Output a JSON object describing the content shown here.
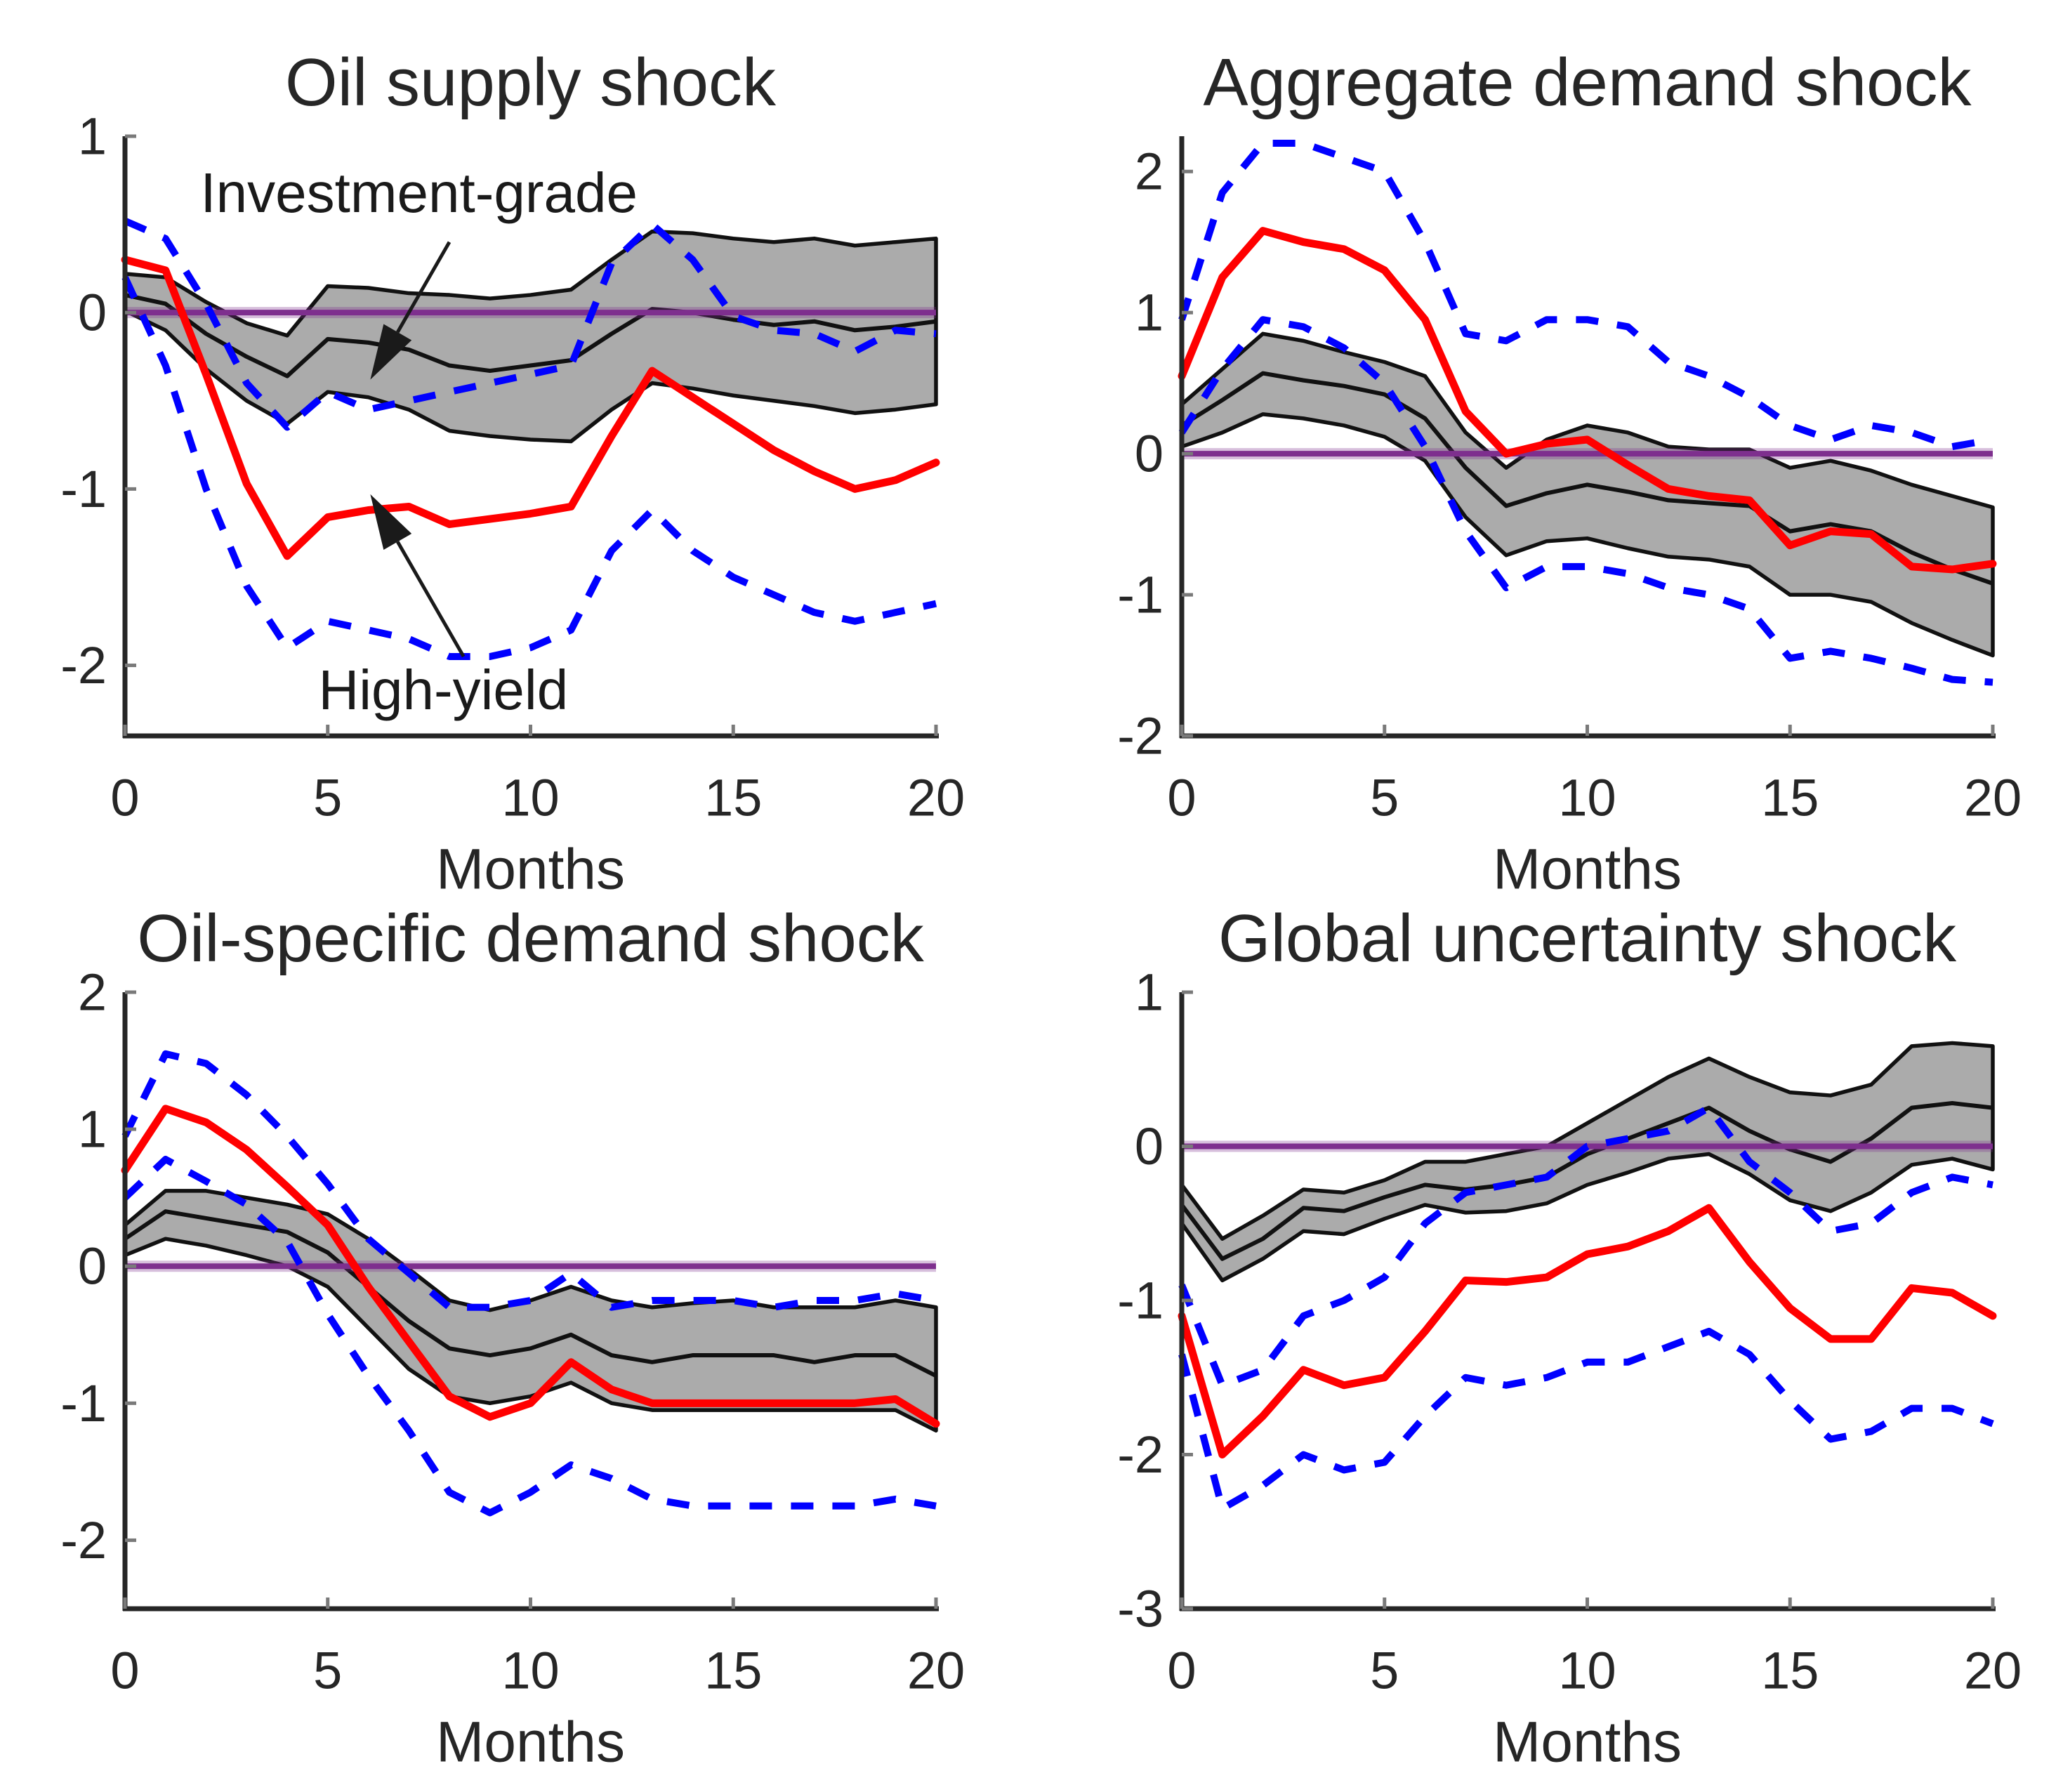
{
  "figure": {
    "background": "#ffffff",
    "palette": {
      "high_yield_red": "#ff0000",
      "ci_blue": "#0000ff",
      "zero_purple": "#7e2f8e",
      "band_gray": "#ababab",
      "band_edge": "#111111",
      "axis_color": "#262626"
    }
  },
  "chart_data": [
    {
      "type": "line",
      "title": "Oil supply shock",
      "xlabel": "Months",
      "x": [
        0,
        1,
        2,
        3,
        4,
        5,
        6,
        7,
        8,
        9,
        10,
        11,
        12,
        13,
        14,
        15,
        16,
        17,
        18,
        19,
        20
      ],
      "xticks": [
        0,
        5,
        10,
        15,
        20
      ],
      "yticks": [
        1,
        0,
        -1,
        -2
      ],
      "xlim": [
        0,
        20
      ],
      "ylim": [
        -2.4,
        1.0
      ],
      "grid": false,
      "legend": "annotated-arrows",
      "band": {
        "name": "investment-grade 68% CI",
        "fill": "#ababab",
        "upper": [
          0.22,
          0.2,
          0.06,
          -0.06,
          -0.13,
          0.15,
          0.14,
          0.11,
          0.1,
          0.08,
          0.1,
          0.13,
          0.3,
          0.46,
          0.45,
          0.42,
          0.4,
          0.42,
          0.38,
          0.4,
          0.42
        ],
        "lower": [
          0.01,
          -0.1,
          -0.32,
          -0.5,
          -0.63,
          -0.45,
          -0.48,
          -0.55,
          -0.67,
          -0.7,
          -0.72,
          -0.73,
          -0.55,
          -0.4,
          -0.43,
          -0.47,
          -0.5,
          -0.53,
          -0.57,
          -0.55,
          -0.52
        ]
      },
      "series": [
        {
          "name": "Investment-grade",
          "color": "#111111",
          "style": "solid",
          "width": 6,
          "values": [
            0.1,
            0.05,
            -0.12,
            -0.25,
            -0.36,
            -0.15,
            -0.17,
            -0.21,
            -0.3,
            -0.33,
            -0.3,
            -0.27,
            -0.12,
            0.02,
            0.0,
            -0.04,
            -0.07,
            -0.05,
            -0.1,
            -0.08,
            -0.05
          ]
        },
        {
          "name": "High-yield CI upper",
          "color": "#0000ff",
          "style": "dashed",
          "width": 10,
          "values": [
            0.52,
            0.42,
            0.05,
            -0.4,
            -0.65,
            -0.45,
            -0.55,
            -0.5,
            -0.45,
            -0.4,
            -0.35,
            -0.3,
            0.28,
            0.5,
            0.3,
            -0.02,
            -0.1,
            -0.12,
            -0.22,
            -0.1,
            -0.12
          ]
        },
        {
          "name": "High-yield CI lower",
          "color": "#0000ff",
          "style": "dashed",
          "width": 10,
          "values": [
            0.2,
            -0.3,
            -1.0,
            -1.55,
            -1.9,
            -1.75,
            -1.8,
            -1.85,
            -1.95,
            -1.95,
            -1.9,
            -1.8,
            -1.35,
            -1.12,
            -1.35,
            -1.5,
            -1.6,
            -1.7,
            -1.75,
            -1.7,
            -1.65
          ]
        },
        {
          "name": "High-yield",
          "color": "#ff0000",
          "style": "solid",
          "width": 11,
          "values": [
            0.3,
            0.24,
            -0.35,
            -0.97,
            -1.38,
            -1.16,
            -1.12,
            -1.1,
            -1.2,
            -1.17,
            -1.14,
            -1.1,
            -0.7,
            -0.33,
            -0.48,
            -0.63,
            -0.78,
            -0.9,
            -1.0,
            -0.95,
            -0.85
          ]
        }
      ],
      "zero_line": {
        "value": 0,
        "color": "#7e2f8e"
      },
      "annotations": [
        {
          "label": "Investment-grade",
          "text_at": [
            7.25,
            0.68
          ],
          "arrow_from": [
            8.0,
            0.4
          ],
          "arrow_to": [
            6.05,
            -0.38
          ]
        },
        {
          "label": "High-yield",
          "text_at": [
            7.85,
            -2.14
          ],
          "arrow_from": [
            8.35,
            -1.95
          ],
          "arrow_to": [
            6.05,
            -1.03
          ]
        }
      ]
    },
    {
      "type": "line",
      "title": "Aggregate demand shock",
      "xlabel": "Months",
      "x": [
        0,
        1,
        2,
        3,
        4,
        5,
        6,
        7,
        8,
        9,
        10,
        11,
        12,
        13,
        14,
        15,
        16,
        17,
        18,
        19,
        20
      ],
      "xticks": [
        0,
        5,
        10,
        15,
        20
      ],
      "yticks": [
        2,
        1,
        0,
        -1,
        -2
      ],
      "xlim": [
        0,
        20
      ],
      "ylim": [
        -2.0,
        2.25
      ],
      "grid": false,
      "band": {
        "name": "investment-grade 68% CI",
        "fill": "#ababab",
        "upper": [
          0.35,
          0.6,
          0.85,
          0.8,
          0.72,
          0.65,
          0.55,
          0.15,
          -0.1,
          0.1,
          0.2,
          0.15,
          0.05,
          0.03,
          0.03,
          -0.1,
          -0.05,
          -0.12,
          -0.22,
          -0.3,
          -0.38
        ],
        "lower": [
          0.05,
          0.15,
          0.28,
          0.25,
          0.2,
          0.12,
          -0.05,
          -0.45,
          -0.72,
          -0.62,
          -0.6,
          -0.67,
          -0.73,
          -0.75,
          -0.8,
          -1.0,
          -1.0,
          -1.05,
          -1.2,
          -1.32,
          -1.43
        ]
      },
      "series": [
        {
          "name": "Investment-grade",
          "color": "#111111",
          "style": "solid",
          "width": 6,
          "values": [
            0.2,
            0.38,
            0.57,
            0.52,
            0.48,
            0.42,
            0.25,
            -0.1,
            -0.37,
            -0.28,
            -0.22,
            -0.27,
            -0.33,
            -0.35,
            -0.37,
            -0.55,
            -0.5,
            -0.55,
            -0.7,
            -0.82,
            -0.92
          ]
        },
        {
          "name": "High-yield CI upper",
          "color": "#0000ff",
          "style": "dashed",
          "width": 10,
          "values": [
            0.95,
            1.85,
            2.2,
            2.2,
            2.1,
            2.0,
            1.5,
            0.85,
            0.8,
            0.95,
            0.95,
            0.9,
            0.65,
            0.55,
            0.4,
            0.2,
            0.1,
            0.2,
            0.15,
            0.05,
            0.1
          ]
        },
        {
          "name": "High-yield CI lower",
          "color": "#0000ff",
          "style": "dashed",
          "width": 10,
          "values": [
            0.15,
            0.6,
            0.95,
            0.9,
            0.75,
            0.5,
            0.05,
            -0.55,
            -0.95,
            -0.8,
            -0.8,
            -0.85,
            -0.95,
            -1.0,
            -1.1,
            -1.45,
            -1.4,
            -1.45,
            -1.52,
            -1.6,
            -1.62
          ]
        },
        {
          "name": "High-yield",
          "color": "#ff0000",
          "style": "solid",
          "width": 11,
          "values": [
            0.55,
            1.25,
            1.58,
            1.5,
            1.45,
            1.3,
            0.95,
            0.3,
            0.0,
            0.07,
            0.1,
            -0.08,
            -0.25,
            -0.3,
            -0.33,
            -0.65,
            -0.55,
            -0.57,
            -0.8,
            -0.82,
            -0.78
          ]
        }
      ],
      "zero_line": {
        "value": 0,
        "color": "#7e2f8e"
      },
      "annotations": []
    },
    {
      "type": "line",
      "title": "Oil-specific demand shock",
      "xlabel": "Months",
      "x": [
        0,
        1,
        2,
        3,
        4,
        5,
        6,
        7,
        8,
        9,
        10,
        11,
        12,
        13,
        14,
        15,
        16,
        17,
        18,
        19,
        20
      ],
      "xticks": [
        0,
        5,
        10,
        15,
        20
      ],
      "yticks": [
        2,
        1,
        0,
        -1,
        -2
      ],
      "xlim": [
        0,
        20
      ],
      "ylim": [
        -2.5,
        2.0
      ],
      "grid": false,
      "band": {
        "name": "investment-grade 68% CI",
        "fill": "#ababab",
        "upper": [
          0.3,
          0.55,
          0.55,
          0.5,
          0.45,
          0.38,
          0.2,
          -0.02,
          -0.25,
          -0.32,
          -0.25,
          -0.15,
          -0.25,
          -0.3,
          -0.27,
          -0.25,
          -0.3,
          -0.3,
          -0.3,
          -0.25,
          -0.3
        ],
        "lower": [
          0.08,
          0.2,
          0.15,
          0.08,
          0.0,
          -0.15,
          -0.45,
          -0.75,
          -0.95,
          -1.0,
          -0.95,
          -0.85,
          -1.0,
          -1.05,
          -1.05,
          -1.05,
          -1.05,
          -1.05,
          -1.05,
          -1.05,
          -1.2
        ]
      },
      "series": [
        {
          "name": "Investment-grade",
          "color": "#111111",
          "style": "solid",
          "width": 6,
          "values": [
            0.2,
            0.4,
            0.35,
            0.3,
            0.25,
            0.1,
            -0.15,
            -0.4,
            -0.6,
            -0.65,
            -0.6,
            -0.5,
            -0.65,
            -0.7,
            -0.65,
            -0.65,
            -0.65,
            -0.7,
            -0.65,
            -0.65,
            -0.8
          ]
        },
        {
          "name": "High-yield CI upper",
          "color": "#0000ff",
          "style": "dashed",
          "width": 10,
          "values": [
            0.95,
            1.55,
            1.48,
            1.25,
            0.95,
            0.6,
            0.2,
            -0.05,
            -0.3,
            -0.3,
            -0.25,
            -0.05,
            -0.3,
            -0.25,
            -0.25,
            -0.25,
            -0.3,
            -0.25,
            -0.25,
            -0.2,
            -0.25
          ]
        },
        {
          "name": "High-yield CI lower",
          "color": "#0000ff",
          "style": "dashed",
          "width": 10,
          "values": [
            0.5,
            0.78,
            0.62,
            0.45,
            0.18,
            -0.35,
            -0.8,
            -1.2,
            -1.65,
            -1.8,
            -1.65,
            -1.45,
            -1.55,
            -1.7,
            -1.75,
            -1.75,
            -1.75,
            -1.75,
            -1.75,
            -1.7,
            -1.75
          ]
        },
        {
          "name": "High-yield",
          "color": "#ff0000",
          "style": "solid",
          "width": 11,
          "values": [
            0.7,
            1.15,
            1.05,
            0.85,
            0.58,
            0.3,
            -0.15,
            -0.55,
            -0.95,
            -1.1,
            -1.0,
            -0.7,
            -0.9,
            -1.0,
            -1.0,
            -1.0,
            -1.0,
            -1.0,
            -1.0,
            -0.97,
            -1.15
          ]
        }
      ],
      "zero_line": {
        "value": 0,
        "color": "#7e2f8e"
      },
      "annotations": []
    },
    {
      "type": "line",
      "title": "Global uncertainty shock",
      "xlabel": "Months",
      "x": [
        0,
        1,
        2,
        3,
        4,
        5,
        6,
        7,
        8,
        9,
        10,
        11,
        12,
        13,
        14,
        15,
        16,
        17,
        18,
        19,
        20
      ],
      "xticks": [
        0,
        5,
        10,
        15,
        20
      ],
      "yticks": [
        1,
        0,
        -1,
        -2,
        -3
      ],
      "xlim": [
        0,
        20
      ],
      "ylim": [
        -3.0,
        1.0
      ],
      "grid": false,
      "band": {
        "name": "investment-grade 68% CI",
        "fill": "#ababab",
        "upper": [
          -0.25,
          -0.6,
          -0.45,
          -0.28,
          -0.3,
          -0.22,
          -0.1,
          -0.1,
          -0.05,
          0.0,
          0.15,
          0.3,
          0.45,
          0.57,
          0.45,
          0.35,
          0.33,
          0.4,
          0.65,
          0.67,
          0.65
        ],
        "lower": [
          -0.5,
          -0.87,
          -0.73,
          -0.55,
          -0.57,
          -0.47,
          -0.38,
          -0.43,
          -0.42,
          -0.37,
          -0.25,
          -0.17,
          -0.08,
          -0.05,
          -0.18,
          -0.35,
          -0.42,
          -0.3,
          -0.12,
          -0.08,
          -0.15
        ]
      },
      "series": [
        {
          "name": "Investment-grade",
          "color": "#111111",
          "style": "solid",
          "width": 6,
          "values": [
            -0.38,
            -0.73,
            -0.6,
            -0.4,
            -0.42,
            -0.33,
            -0.25,
            -0.28,
            -0.25,
            -0.2,
            -0.05,
            0.05,
            0.15,
            0.25,
            0.1,
            -0.02,
            -0.1,
            0.05,
            0.25,
            0.28,
            0.25
          ]
        },
        {
          "name": "High-yield CI upper",
          "color": "#0000ff",
          "style": "dashed",
          "width": 10,
          "values": [
            -0.9,
            -1.55,
            -1.45,
            -1.1,
            -1.0,
            -0.85,
            -0.5,
            -0.3,
            -0.25,
            -0.2,
            0.0,
            0.05,
            0.1,
            0.25,
            -0.1,
            -0.3,
            -0.55,
            -0.5,
            -0.3,
            -0.2,
            -0.25
          ]
        },
        {
          "name": "High-yield CI lower",
          "color": "#0000ff",
          "style": "dashed",
          "width": 10,
          "values": [
            -1.35,
            -2.35,
            -2.2,
            -2.0,
            -2.1,
            -2.05,
            -1.75,
            -1.5,
            -1.55,
            -1.5,
            -1.4,
            -1.4,
            -1.3,
            -1.2,
            -1.35,
            -1.65,
            -1.9,
            -1.85,
            -1.7,
            -1.7,
            -1.8
          ]
        },
        {
          "name": "High-yield",
          "color": "#ff0000",
          "style": "solid",
          "width": 11,
          "values": [
            -1.1,
            -2.0,
            -1.75,
            -1.45,
            -1.55,
            -1.5,
            -1.2,
            -0.87,
            -0.88,
            -0.85,
            -0.7,
            -0.65,
            -0.55,
            -0.4,
            -0.75,
            -1.05,
            -1.25,
            -1.25,
            -0.92,
            -0.95,
            -1.1
          ]
        }
      ],
      "zero_line": {
        "value": 0,
        "color": "#7e2f8e"
      },
      "annotations": []
    }
  ]
}
